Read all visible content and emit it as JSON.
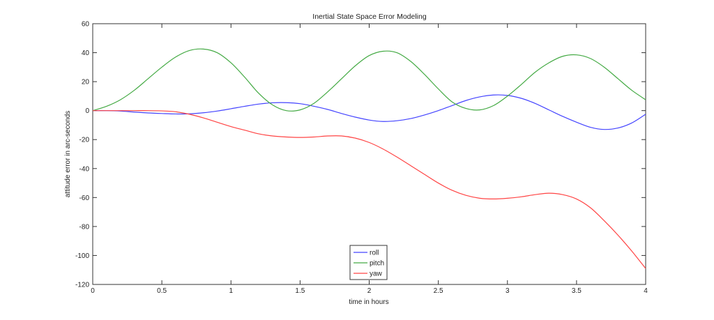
{
  "chart_data": {
    "type": "line",
    "title": "Inertial State Space Error Modeling",
    "xlabel": "time in hours",
    "ylabel": "attitude error in arc-seconds",
    "xlim": [
      0,
      4
    ],
    "ylim": [
      -120,
      60
    ],
    "xticks": [
      0,
      0.5,
      1,
      1.5,
      2,
      2.5,
      3,
      3.5,
      4
    ],
    "xtick_labels": [
      "0",
      "0.5",
      "1",
      "1.5",
      "2",
      "2.5",
      "3",
      "3.5",
      "4"
    ],
    "yticks": [
      60,
      40,
      20,
      0,
      -20,
      -40,
      -60,
      -80,
      -100,
      -120
    ],
    "ytick_labels": [
      "60",
      "40",
      "20",
      "0",
      "-20",
      "-40",
      "-60",
      "-80",
      "-100",
      "-120"
    ],
    "grid": false,
    "legend_position": "bottom-center",
    "x": [
      0,
      0.1,
      0.2,
      0.3,
      0.4,
      0.5,
      0.6,
      0.7,
      0.8,
      0.9,
      1.0,
      1.1,
      1.2,
      1.3,
      1.4,
      1.5,
      1.6,
      1.7,
      1.8,
      1.9,
      2.0,
      2.1,
      2.2,
      2.3,
      2.4,
      2.5,
      2.6,
      2.7,
      2.8,
      2.9,
      3.0,
      3.1,
      3.2,
      3.3,
      3.4,
      3.5,
      3.6,
      3.7,
      3.8,
      3.9,
      4.0
    ],
    "series": [
      {
        "name": "roll",
        "color": "#4444ff",
        "values": [
          0,
          0,
          -0.3,
          -1,
          -1.6,
          -2,
          -2.3,
          -2.2,
          -1.5,
          -0.3,
          1.3,
          3,
          4.5,
          5.4,
          5.5,
          4.8,
          3,
          0.8,
          -2,
          -4.5,
          -6.5,
          -7.5,
          -7,
          -5.5,
          -3,
          0,
          3.5,
          7,
          9.5,
          10.8,
          10.5,
          8.5,
          5,
          0.5,
          -4,
          -8,
          -11.5,
          -13,
          -12,
          -8.5,
          -2.5
        ]
      },
      {
        "name": "pitch",
        "color": "#44aa44",
        "values": [
          0,
          3,
          7.5,
          14,
          22,
          30,
          37,
          41.5,
          42.5,
          40,
          33,
          23,
          12,
          4,
          0,
          0.5,
          5,
          13,
          22,
          31,
          38,
          41,
          40,
          34,
          25,
          15,
          6,
          1.5,
          0.5,
          3.5,
          10,
          18,
          26.5,
          33,
          37.5,
          38.5,
          36,
          30,
          22,
          14,
          7.5
        ]
      },
      {
        "name": "yaw",
        "color": "#ff4444",
        "values": [
          0,
          0,
          0,
          0,
          0,
          -0.2,
          -0.8,
          -2.5,
          -5,
          -8,
          -11,
          -13.5,
          -16,
          -17.5,
          -18.2,
          -18.5,
          -18.2,
          -17.5,
          -17.5,
          -19,
          -22,
          -26.5,
          -32,
          -38,
          -44,
          -50,
          -55,
          -58.5,
          -60.5,
          -61,
          -60.5,
          -59.5,
          -58,
          -57,
          -58,
          -61,
          -67,
          -76,
          -86,
          -97,
          -109
        ]
      }
    ]
  },
  "legend": {
    "items": [
      {
        "label": "roll",
        "color": "#4444ff"
      },
      {
        "label": "pitch",
        "color": "#44aa44"
      },
      {
        "label": "yaw",
        "color": "#ff4444"
      }
    ]
  }
}
